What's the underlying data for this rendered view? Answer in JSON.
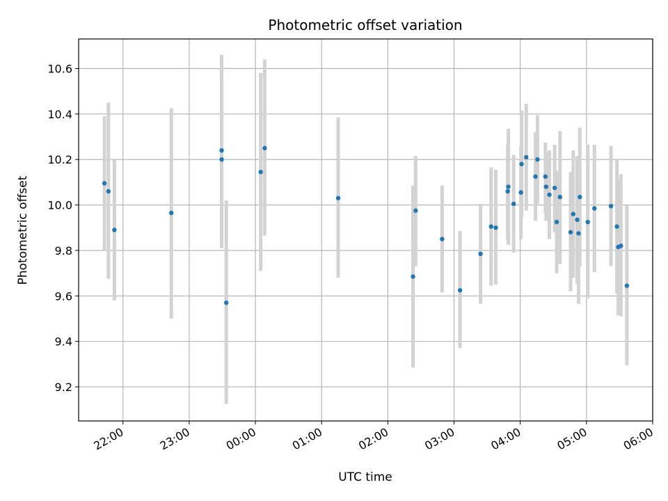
{
  "chart_data": {
    "type": "scatter",
    "title": "Photometric offset variation",
    "xlabel": "UTC time",
    "ylabel": "Photometric offset",
    "grid": true,
    "marker_color": "#1f77b4",
    "errorbar_color": "#d3d3d3",
    "x_axis": {
      "unit": "hours since 00:00 UTC",
      "range": [
        -2.67,
        6.0
      ],
      "ticks": [
        {
          "value": -2,
          "label": "22:00"
        },
        {
          "value": -1,
          "label": "23:00"
        },
        {
          "value": 0,
          "label": "00:00"
        },
        {
          "value": 1,
          "label": "01:00"
        },
        {
          "value": 2,
          "label": "02:00"
        },
        {
          "value": 3,
          "label": "03:00"
        },
        {
          "value": 4,
          "label": "04:00"
        },
        {
          "value": 5,
          "label": "05:00"
        },
        {
          "value": 6,
          "label": "06:00"
        }
      ]
    },
    "y_axis": {
      "range": [
        9.05,
        10.73
      ],
      "ticks": [
        {
          "value": 9.2,
          "label": "9.2"
        },
        {
          "value": 9.4,
          "label": "9.4"
        },
        {
          "value": 9.6,
          "label": "9.6"
        },
        {
          "value": 9.8,
          "label": "9.8"
        },
        {
          "value": 10.0,
          "label": "10.0"
        },
        {
          "value": 10.2,
          "label": "10.2"
        },
        {
          "value": 10.4,
          "label": "10.4"
        },
        {
          "value": 10.6,
          "label": "10.6"
        }
      ]
    },
    "points": [
      {
        "x": -2.28,
        "y": 10.095,
        "lo": 9.8,
        "hi": 10.39
      },
      {
        "x": -2.22,
        "y": 10.06,
        "lo": 9.675,
        "hi": 10.45
      },
      {
        "x": -2.13,
        "y": 9.89,
        "lo": 9.58,
        "hi": 10.2
      },
      {
        "x": -1.27,
        "y": 9.965,
        "lo": 9.5,
        "hi": 10.425
      },
      {
        "x": -0.51,
        "y": 10.24,
        "lo": 9.81,
        "hi": 10.66
      },
      {
        "x": -0.51,
        "y": 10.2,
        "lo": 9.81,
        "hi": 10.58
      },
      {
        "x": -0.44,
        "y": 9.57,
        "lo": 9.125,
        "hi": 10.02
      },
      {
        "x": 0.08,
        "y": 10.145,
        "lo": 9.71,
        "hi": 10.58
      },
      {
        "x": 0.14,
        "y": 10.25,
        "lo": 9.865,
        "hi": 10.64
      },
      {
        "x": 1.25,
        "y": 10.03,
        "lo": 9.68,
        "hi": 10.385
      },
      {
        "x": 2.38,
        "y": 9.685,
        "lo": 9.285,
        "hi": 10.085
      },
      {
        "x": 2.42,
        "y": 9.975,
        "lo": 9.73,
        "hi": 10.215
      },
      {
        "x": 2.82,
        "y": 9.85,
        "lo": 9.615,
        "hi": 10.085
      },
      {
        "x": 3.09,
        "y": 9.625,
        "lo": 9.37,
        "hi": 9.885
      },
      {
        "x": 3.4,
        "y": 9.785,
        "lo": 9.565,
        "hi": 10.005
      },
      {
        "x": 3.56,
        "y": 9.905,
        "lo": 9.645,
        "hi": 10.165
      },
      {
        "x": 3.63,
        "y": 9.9,
        "lo": 9.65,
        "hi": 10.155
      },
      {
        "x": 3.81,
        "y": 10.06,
        "lo": 9.85,
        "hi": 10.265
      },
      {
        "x": 3.82,
        "y": 10.08,
        "lo": 9.825,
        "hi": 10.335
      },
      {
        "x": 3.9,
        "y": 10.005,
        "lo": 9.79,
        "hi": 10.22
      },
      {
        "x": 4.01,
        "y": 10.055,
        "lo": 9.85,
        "hi": 10.26
      },
      {
        "x": 4.02,
        "y": 10.18,
        "lo": 9.945,
        "hi": 10.415
      },
      {
        "x": 4.09,
        "y": 10.21,
        "lo": 9.975,
        "hi": 10.445
      },
      {
        "x": 4.23,
        "y": 10.125,
        "lo": 9.93,
        "hi": 10.32
      },
      {
        "x": 4.26,
        "y": 10.2,
        "lo": 10.005,
        "hi": 10.395
      },
      {
        "x": 4.38,
        "y": 10.125,
        "lo": 9.965,
        "hi": 10.275
      },
      {
        "x": 4.39,
        "y": 10.08,
        "lo": 9.93,
        "hi": 10.23
      },
      {
        "x": 4.44,
        "y": 10.045,
        "lo": 9.85,
        "hi": 10.24
      },
      {
        "x": 4.52,
        "y": 10.075,
        "lo": 9.88,
        "hi": 10.265
      },
      {
        "x": 4.55,
        "y": 9.925,
        "lo": 9.7,
        "hi": 10.15
      },
      {
        "x": 4.6,
        "y": 10.035,
        "lo": 9.74,
        "hi": 10.325
      },
      {
        "x": 4.76,
        "y": 9.88,
        "lo": 9.62,
        "hi": 10.145
      },
      {
        "x": 4.8,
        "y": 9.96,
        "lo": 9.68,
        "hi": 10.24
      },
      {
        "x": 4.86,
        "y": 9.935,
        "lo": 9.655,
        "hi": 10.215
      },
      {
        "x": 4.88,
        "y": 9.875,
        "lo": 9.565,
        "hi": 10.185
      },
      {
        "x": 4.9,
        "y": 10.035,
        "lo": 9.73,
        "hi": 10.34
      },
      {
        "x": 5.02,
        "y": 9.925,
        "lo": 9.59,
        "hi": 10.265
      },
      {
        "x": 5.12,
        "y": 9.985,
        "lo": 9.705,
        "hi": 10.265
      },
      {
        "x": 5.37,
        "y": 9.995,
        "lo": 9.73,
        "hi": 10.26
      },
      {
        "x": 5.46,
        "y": 9.905,
        "lo": 9.61,
        "hi": 10.2
      },
      {
        "x": 5.48,
        "y": 9.815,
        "lo": 9.515,
        "hi": 10.115
      },
      {
        "x": 5.52,
        "y": 9.82,
        "lo": 9.51,
        "hi": 10.135
      },
      {
        "x": 5.61,
        "y": 9.645,
        "lo": 9.295,
        "hi": 10.0
      }
    ]
  }
}
